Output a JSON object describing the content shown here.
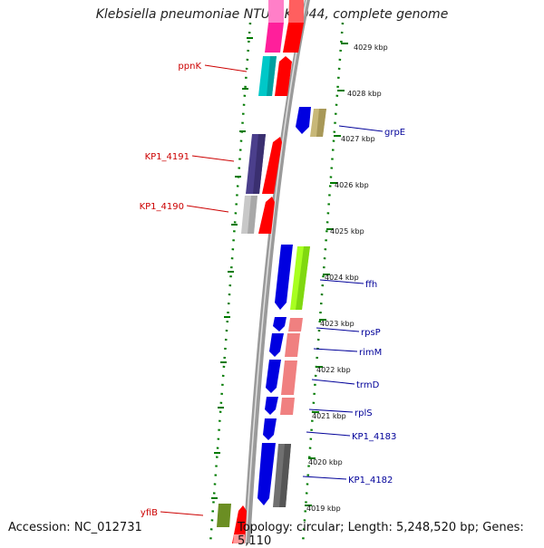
{
  "title": "Klebsiella pneumoniae NTUH-K2044, complete genome",
  "footer": {
    "accession": "Accession: NC_012731",
    "topology": "Topology: circular; Length: 5,248,520 bp; Genes: 5,110"
  },
  "scale_labels": [
    "4029 kbp",
    "4028 kbp",
    "4027 kbp",
    "4026 kbp",
    "4025 kbp",
    "4024 kbp",
    "4023 kbp",
    "4022 kbp",
    "4021 kbp",
    "4020 kbp",
    "4019 kbp"
  ],
  "left_gene_labels": [
    "ppnK",
    "KP1_4191",
    "KP1_4190",
    "yfiB"
  ],
  "right_gene_labels": [
    "grpE",
    "ffh",
    "rpsP",
    "rimM",
    "trmD",
    "rplS",
    "KP1_4183",
    "KP1_4182"
  ],
  "colors": {
    "backbone": "#8c8c8c",
    "dotted_ring": "#007a00",
    "label_left": "#cc0000",
    "label_right": "#000099"
  }
}
